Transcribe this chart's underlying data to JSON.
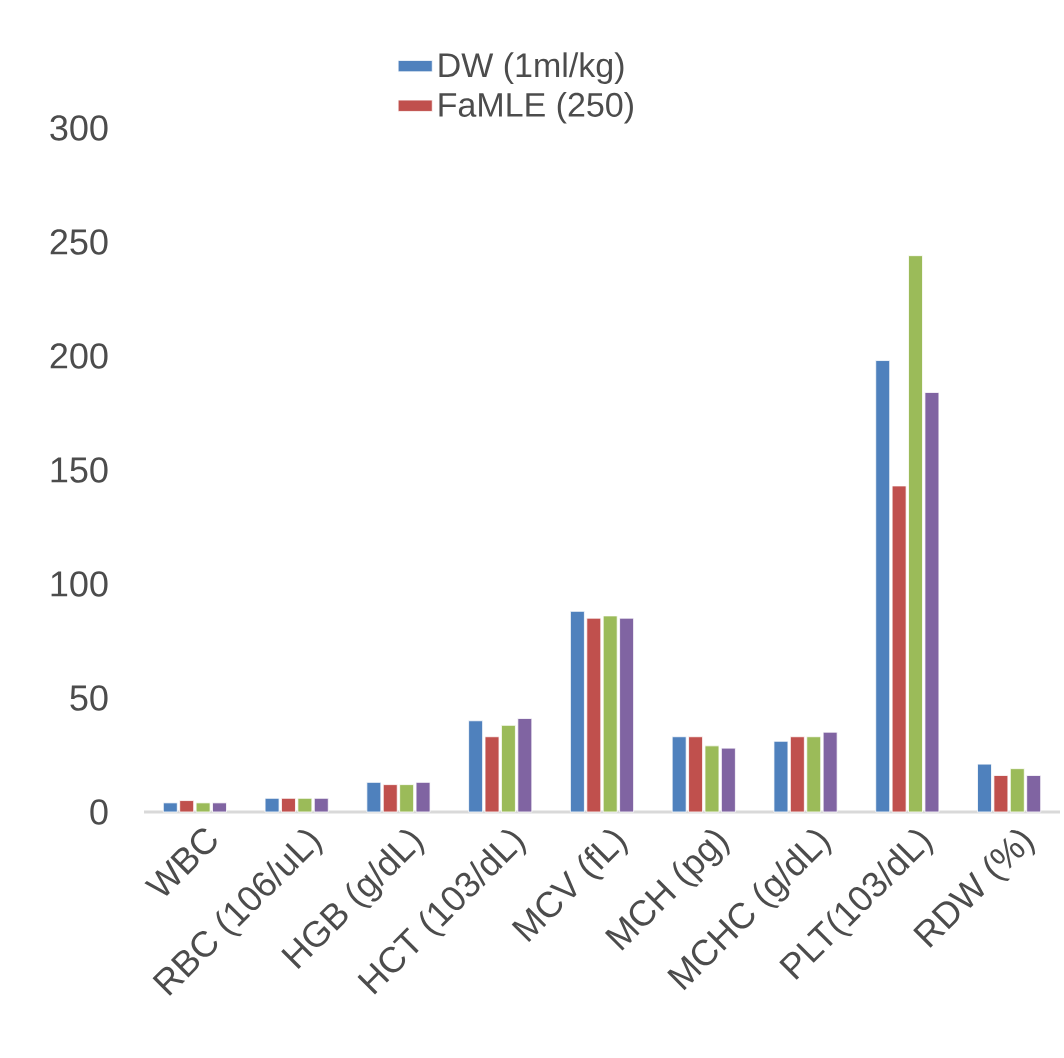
{
  "chart_data": {
    "type": "bar",
    "categories": [
      "WBC",
      "RBC (106/uL)",
      "HGB (g/dL)",
      "HCT (103/dL)",
      "MCV (fL)",
      "MCH (pg)",
      "MCHC (g/dL)",
      "PLT(103/dL)",
      "RDW (%)"
    ],
    "series": [
      {
        "name": "DW (1ml/kg)",
        "color": "#4f81bd",
        "values": [
          4,
          6,
          13,
          40,
          88,
          33,
          31,
          198,
          21
        ]
      },
      {
        "name": "FaMLE (250)",
        "color": "#c0504d",
        "values": [
          5,
          6,
          12,
          33,
          85,
          33,
          33,
          143,
          16
        ]
      },
      {
        "color": "#9bbb59",
        "values": [
          4,
          6,
          12,
          38,
          86,
          29,
          33,
          244,
          19
        ]
      },
      {
        "color": "#8064a2",
        "values": [
          4,
          6,
          13,
          41,
          85,
          28,
          35,
          184,
          16
        ]
      }
    ],
    "ylim": [
      0,
      300
    ],
    "yticks": [
      0,
      50,
      100,
      150,
      200,
      250,
      300
    ],
    "grid": false,
    "legend": "top"
  }
}
